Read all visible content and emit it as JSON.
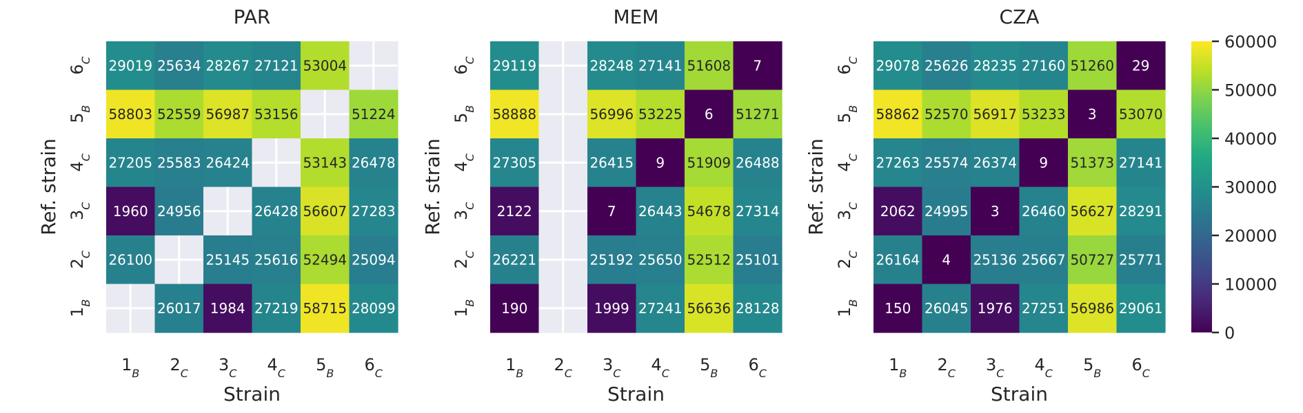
{
  "chart_data": [
    {
      "type": "heatmap",
      "title": "PAR",
      "xlabel": "Strain",
      "ylabel": "Ref. strain",
      "x_categories": [
        {
          "num": "1",
          "sub": "B"
        },
        {
          "num": "2",
          "sub": "C"
        },
        {
          "num": "3",
          "sub": "C"
        },
        {
          "num": "4",
          "sub": "C"
        },
        {
          "num": "5",
          "sub": "B"
        },
        {
          "num": "6",
          "sub": "C"
        }
      ],
      "y_categories_top_to_bottom": [
        {
          "num": "6",
          "sub": "C"
        },
        {
          "num": "5",
          "sub": "B"
        },
        {
          "num": "4",
          "sub": "C"
        },
        {
          "num": "3",
          "sub": "C"
        },
        {
          "num": "2",
          "sub": "C"
        },
        {
          "num": "1",
          "sub": "B"
        }
      ],
      "values": [
        [
          29019,
          25634,
          28267,
          27121,
          53004,
          null
        ],
        [
          58803,
          52559,
          56987,
          53156,
          null,
          51224
        ],
        [
          27205,
          25583,
          26424,
          null,
          53143,
          26478
        ],
        [
          1960,
          24956,
          null,
          26428,
          56607,
          27283
        ],
        [
          26100,
          null,
          25145,
          25616,
          52494,
          25094
        ],
        [
          null,
          26017,
          1984,
          27219,
          58715,
          28099
        ]
      ]
    },
    {
      "type": "heatmap",
      "title": "MEM",
      "xlabel": "Strain",
      "ylabel": "Ref. strain",
      "x_categories": [
        {
          "num": "1",
          "sub": "B"
        },
        {
          "num": "2",
          "sub": "C"
        },
        {
          "num": "3",
          "sub": "C"
        },
        {
          "num": "4",
          "sub": "C"
        },
        {
          "num": "5",
          "sub": "B"
        },
        {
          "num": "6",
          "sub": "C"
        }
      ],
      "y_categories_top_to_bottom": [
        {
          "num": "6",
          "sub": "C"
        },
        {
          "num": "5",
          "sub": "B"
        },
        {
          "num": "4",
          "sub": "C"
        },
        {
          "num": "3",
          "sub": "C"
        },
        {
          "num": "2",
          "sub": "C"
        },
        {
          "num": "1",
          "sub": "B"
        }
      ],
      "values": [
        [
          29119,
          null,
          28248,
          27141,
          51608,
          7
        ],
        [
          58888,
          null,
          56996,
          53225,
          6,
          51271
        ],
        [
          27305,
          null,
          26415,
          9,
          51909,
          26488
        ],
        [
          2122,
          null,
          7,
          26443,
          54678,
          27314
        ],
        [
          26221,
          null,
          25192,
          25650,
          52512,
          25101
        ],
        [
          190,
          null,
          1999,
          27241,
          56636,
          28128
        ]
      ]
    },
    {
      "type": "heatmap",
      "title": "CZA",
      "xlabel": "Strain",
      "ylabel": "Ref. strain",
      "x_categories": [
        {
          "num": "1",
          "sub": "B"
        },
        {
          "num": "2",
          "sub": "C"
        },
        {
          "num": "3",
          "sub": "C"
        },
        {
          "num": "4",
          "sub": "C"
        },
        {
          "num": "5",
          "sub": "B"
        },
        {
          "num": "6",
          "sub": "C"
        }
      ],
      "y_categories_top_to_bottom": [
        {
          "num": "6",
          "sub": "C"
        },
        {
          "num": "5",
          "sub": "B"
        },
        {
          "num": "4",
          "sub": "C"
        },
        {
          "num": "3",
          "sub": "C"
        },
        {
          "num": "2",
          "sub": "C"
        },
        {
          "num": "1",
          "sub": "B"
        }
      ],
      "values": [
        [
          29078,
          25626,
          28235,
          27160,
          51260,
          29
        ],
        [
          58862,
          52570,
          56917,
          53233,
          3,
          53070
        ],
        [
          27263,
          25574,
          26374,
          9,
          51373,
          27141
        ],
        [
          2062,
          24995,
          3,
          26460,
          56627,
          28291
        ],
        [
          26164,
          4,
          25136,
          25667,
          50727,
          25771
        ],
        [
          150,
          26045,
          1976,
          27251,
          56986,
          29061
        ]
      ]
    }
  ],
  "colorbar": {
    "colormap": "viridis",
    "vmin": 0,
    "vmax": 60000,
    "ticks": [
      "0",
      "10000",
      "20000",
      "30000",
      "40000",
      "50000",
      "60000"
    ]
  },
  "colors": {
    "missing_cell": "#eaeaf2",
    "text": "#262626"
  }
}
